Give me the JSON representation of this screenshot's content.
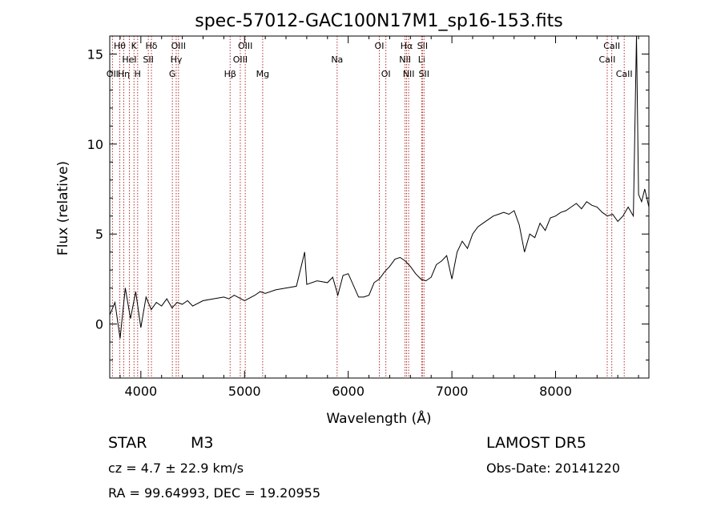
{
  "chart_data": {
    "type": "line",
    "title": "spec-57012-GAC100N17M1_sp16-153.fits",
    "xlabel": "Wavelength (Å)",
    "ylabel": "Flux (relative)",
    "xlim": [
      3700,
      8900
    ],
    "ylim": [
      -3,
      16
    ],
    "x_ticks": [
      4000,
      5000,
      6000,
      7000,
      8000
    ],
    "x_tick_labels": [
      "4000",
      "5000",
      "6000",
      "7000",
      "8000"
    ],
    "y_ticks": [
      0,
      5,
      10,
      15
    ],
    "y_tick_labels": [
      "0",
      "5",
      "10",
      "15"
    ],
    "grid": false,
    "series": [
      {
        "color": "#000000",
        "x": [
          3700,
          3750,
          3800,
          3850,
          3900,
          3950,
          4000,
          4050,
          4100,
          4150,
          4200,
          4250,
          4300,
          4350,
          4400,
          4450,
          4500,
          4600,
          4700,
          4800,
          4850,
          4900,
          5000,
          5100,
          5150,
          5200,
          5300,
          5400,
          5500,
          5580,
          5600,
          5700,
          5800,
          5850,
          5900,
          5950,
          6000,
          6100,
          6150,
          6200,
          6250,
          6300,
          6350,
          6400,
          6450,
          6500,
          6550,
          6600,
          6650,
          6700,
          6750,
          6800,
          6850,
          6900,
          6950,
          7000,
          7050,
          7100,
          7150,
          7200,
          7250,
          7300,
          7350,
          7400,
          7450,
          7500,
          7550,
          7600,
          7650,
          7700,
          7750,
          7800,
          7850,
          7900,
          7950,
          8000,
          8050,
          8100,
          8150,
          8200,
          8250,
          8300,
          8350,
          8400,
          8450,
          8500,
          8550,
          8600,
          8650,
          8700,
          8750,
          8780,
          8800,
          8830,
          8860,
          8900
        ],
        "y": [
          0.5,
          1.2,
          -0.8,
          2.0,
          0.3,
          1.8,
          -0.2,
          1.5,
          0.8,
          1.2,
          1.0,
          1.4,
          0.9,
          1.2,
          1.1,
          1.3,
          1.0,
          1.3,
          1.4,
          1.5,
          1.4,
          1.6,
          1.3,
          1.6,
          1.8,
          1.7,
          1.9,
          2.0,
          2.1,
          4.0,
          2.2,
          2.4,
          2.3,
          2.6,
          1.6,
          2.7,
          2.8,
          1.5,
          1.5,
          1.6,
          2.3,
          2.5,
          2.9,
          3.2,
          3.6,
          3.7,
          3.5,
          3.2,
          2.8,
          2.5,
          2.4,
          2.6,
          3.3,
          3.5,
          3.8,
          2.5,
          4.0,
          4.6,
          4.2,
          5.0,
          5.4,
          5.6,
          5.8,
          6.0,
          6.1,
          6.2,
          6.1,
          6.3,
          5.5,
          4.0,
          5.0,
          4.8,
          5.6,
          5.2,
          5.9,
          6.0,
          6.2,
          6.3,
          6.5,
          6.7,
          6.4,
          6.8,
          6.6,
          6.5,
          6.2,
          6.0,
          6.1,
          5.7,
          6.0,
          6.5,
          6.0,
          16.5,
          7.2,
          6.8,
          7.5,
          6.5
        ]
      }
    ],
    "line_markers": [
      {
        "x": 3726,
        "label": "OII",
        "row": 3
      },
      {
        "x": 3797,
        "label": "Hθ",
        "row": 1
      },
      {
        "x": 3835,
        "label": "Hη",
        "row": 3
      },
      {
        "x": 3889,
        "label": "HeI",
        "row": 2
      },
      {
        "x": 3934,
        "label": "K",
        "row": 1
      },
      {
        "x": 3969,
        "label": "H",
        "row": 3
      },
      {
        "x": 4072,
        "label": "SII",
        "row": 2
      },
      {
        "x": 4102,
        "label": "Hδ",
        "row": 1
      },
      {
        "x": 4304,
        "label": "G",
        "row": 3
      },
      {
        "x": 4341,
        "label": "Hγ",
        "row": 2
      },
      {
        "x": 4363,
        "label": "OIII",
        "row": 1
      },
      {
        "x": 4861,
        "label": "Hβ",
        "row": 3
      },
      {
        "x": 4959,
        "label": "OIII",
        "row": 2
      },
      {
        "x": 5007,
        "label": "OIII",
        "row": 1
      },
      {
        "x": 5175,
        "label": "Mg",
        "row": 3
      },
      {
        "x": 5893,
        "label": "Na",
        "row": 2
      },
      {
        "x": 6300,
        "label": "OI",
        "row": 1
      },
      {
        "x": 6363,
        "label": "OI",
        "row": 3
      },
      {
        "x": 6548,
        "label": "NII",
        "row": 2
      },
      {
        "x": 6563,
        "label": "Hα",
        "row": 1
      },
      {
        "x": 6583,
        "label": "NII",
        "row": 3
      },
      {
        "x": 6708,
        "label": "Li",
        "row": 2
      },
      {
        "x": 6716,
        "label": "SII",
        "row": 1
      },
      {
        "x": 6731,
        "label": "SII",
        "row": 3
      },
      {
        "x": 8498,
        "label": "CaII",
        "row": 2
      },
      {
        "x": 8542,
        "label": "CaII",
        "row": 1
      },
      {
        "x": 8662,
        "label": "CaII",
        "row": 3
      }
    ]
  },
  "info": {
    "class_label": "STAR",
    "subclass_label": "M3",
    "survey_label": "LAMOST DR5",
    "cz_text": "cz = 4.7 ± 22.9 km/s",
    "obs_date_text": "Obs-Date: 20141220",
    "coords_text": "RA =  99.64993, DEC =  19.20955"
  }
}
